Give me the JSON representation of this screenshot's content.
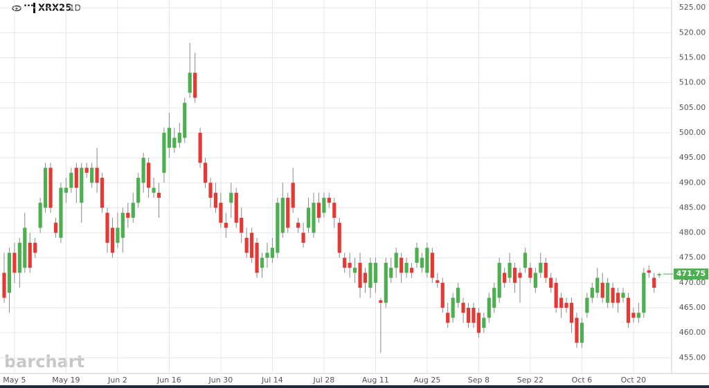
{
  "header": {
    "symbol": "XRX25",
    "interval": "1D",
    "menu": "···"
  },
  "watermark": "barchart",
  "chart_data": {
    "type": "candlestick",
    "last_price": 471.75,
    "up_color": "#4caf50",
    "down_color": "#e53935",
    "grid": true,
    "categories": [
      null,
      null,
      "May 5",
      null,
      null,
      null,
      null,
      null,
      null,
      null,
      null,
      null,
      "May 19",
      null,
      null,
      null,
      null,
      null,
      null,
      null,
      null,
      null,
      "Jun 2",
      null,
      null,
      null,
      null,
      null,
      null,
      null,
      null,
      null,
      "Jun 16",
      null,
      null,
      null,
      null,
      null,
      null,
      null,
      null,
      null,
      "Jun 30",
      null,
      null,
      null,
      null,
      null,
      null,
      null,
      null,
      null,
      "Jul 14",
      null,
      null,
      null,
      null,
      null,
      null,
      null,
      null,
      null,
      "Jul 28",
      null,
      null,
      null,
      null,
      null,
      null,
      null,
      null,
      null,
      "Aug 11",
      null,
      null,
      null,
      null,
      null,
      null,
      null,
      null,
      null,
      "Aug 25",
      null,
      null,
      null,
      null,
      null,
      null,
      null,
      null,
      null,
      "Sep 8",
      null,
      null,
      null,
      null,
      null,
      null,
      null,
      null,
      null,
      "Sep 22",
      null,
      null,
      null,
      null,
      null,
      null,
      null,
      null,
      null,
      "Oct 6",
      null,
      null,
      null,
      null,
      null,
      null,
      null,
      null,
      null,
      "Oct 20",
      null,
      null,
      null,
      null,
      null
    ],
    "open": [
      472,
      468,
      476,
      472,
      473,
      478,
      478,
      481,
      485,
      493,
      482,
      479,
      488,
      489,
      493,
      486,
      493,
      490,
      493,
      491,
      484,
      481,
      478,
      479,
      484,
      483,
      486,
      490,
      494,
      488,
      488,
      492,
      497,
      497,
      498,
      499,
      508,
      512,
      500,
      494,
      490,
      488,
      486,
      482,
      486,
      488,
      483,
      479,
      480,
      478,
      473,
      475,
      475,
      476,
      480,
      487,
      490,
      482,
      480,
      481,
      480,
      486,
      484,
      487,
      486,
      482,
      475,
      474,
      472,
      474,
      472,
      469,
      470,
      466.5,
      466,
      471,
      473,
      475,
      472,
      473,
      474,
      473,
      472,
      476,
      470.5,
      470,
      464,
      463,
      466,
      466,
      465,
      465,
      464,
      461,
      463,
      465,
      467,
      472,
      471,
      473,
      472,
      473,
      473,
      469,
      472,
      474,
      471,
      470,
      467,
      466,
      466,
      463,
      458,
      464,
      467,
      468,
      470,
      466,
      469,
      468,
      467,
      467,
      464,
      463,
      464,
      472.5,
      471,
      471.5
    ],
    "high": [
      476,
      477,
      478,
      479,
      484,
      480,
      479,
      487,
      494,
      494,
      483,
      490,
      491,
      493,
      494,
      494,
      494,
      494,
      497,
      492,
      485,
      483,
      484,
      485,
      486,
      488,
      492,
      496,
      495,
      491,
      490,
      501,
      504,
      501,
      502,
      507,
      518,
      516,
      501,
      495,
      491,
      490,
      488,
      484,
      490,
      489,
      485,
      481,
      481,
      479,
      476,
      478,
      479,
      487,
      490,
      488,
      493,
      483,
      482,
      487,
      488,
      488,
      488,
      488,
      487,
      483,
      476,
      476,
      475,
      476,
      473,
      475,
      475,
      467,
      475,
      475,
      477,
      476,
      475,
      474,
      478,
      476,
      478,
      477,
      472,
      471,
      466,
      468,
      470,
      467,
      466,
      466,
      465,
      464,
      468,
      470,
      475,
      473,
      476,
      474,
      473,
      477,
      474,
      473,
      476,
      475,
      472,
      471,
      468,
      467,
      467,
      464,
      463,
      468,
      470,
      473,
      472,
      471,
      470,
      469,
      469,
      468,
      465,
      466,
      473,
      473.5,
      472,
      472
    ],
    "low": [
      466,
      464,
      470,
      469,
      472,
      472,
      475,
      480,
      484,
      484,
      479,
      478,
      486,
      488,
      486,
      482,
      491,
      489,
      488,
      484,
      476,
      475,
      477,
      476,
      481,
      482,
      485,
      488,
      487,
      487,
      483,
      490,
      495,
      496,
      497,
      498,
      507,
      506,
      493,
      489,
      485,
      484,
      481,
      479,
      483,
      481,
      478,
      475,
      474,
      471,
      471,
      473,
      474,
      475,
      479,
      480,
      484,
      480,
      477,
      480,
      479,
      482,
      483,
      485,
      481,
      475,
      472,
      471,
      470,
      467,
      468,
      467,
      468,
      456,
      465,
      470,
      471,
      470,
      471,
      471,
      473,
      472,
      471,
      470,
      469,
      464,
      461,
      462,
      465,
      462,
      461,
      461,
      459,
      460,
      462,
      464,
      466,
      469,
      470,
      468,
      466,
      472,
      470,
      468,
      471,
      470,
      468,
      464,
      463,
      464,
      460,
      457,
      457,
      463,
      466,
      467,
      466,
      465,
      465,
      464,
      466,
      461,
      462,
      462,
      463,
      471,
      468,
      471
    ],
    "close": [
      467,
      476,
      472,
      478,
      481,
      473,
      476,
      486,
      493,
      485,
      480,
      489,
      489,
      492,
      489,
      493,
      492,
      493,
      490,
      485,
      478,
      476,
      481,
      484,
      483,
      486,
      491,
      495,
      489,
      489,
      487,
      500,
      501,
      499,
      500,
      506,
      512,
      507,
      494,
      490,
      487,
      485,
      482,
      481,
      488,
      482,
      480,
      476,
      475,
      472,
      475,
      476,
      477,
      486,
      487,
      481,
      485,
      481,
      478,
      485,
      486,
      483,
      487,
      486,
      483,
      476,
      473,
      473,
      473,
      469,
      470,
      474,
      474,
      466,
      474,
      473,
      476,
      472,
      474,
      472,
      477,
      475,
      477,
      471,
      470,
      465,
      462,
      467,
      469,
      464,
      462,
      462,
      460,
      463,
      467,
      469,
      474,
      470,
      474,
      470,
      471,
      476,
      471,
      472,
      474,
      471,
      469,
      465,
      465,
      465,
      462,
      458,
      462,
      467,
      469,
      471,
      467,
      470,
      466,
      466,
      468,
      462,
      463,
      464,
      472,
      472,
      469,
      471.75
    ],
    "ylim": [
      454,
      525.5
    ],
    "yticks": [
      {
        "value": 455,
        "label": "455.00"
      },
      {
        "value": 460,
        "label": "460.00"
      },
      {
        "value": 465,
        "label": "465.00"
      },
      {
        "value": 470,
        "label": "470.00"
      },
      {
        "value": 475,
        "label": "475.00"
      },
      {
        "value": 480,
        "label": "480.00"
      },
      {
        "value": 485,
        "label": "485.00"
      },
      {
        "value": 490,
        "label": "490.00"
      },
      {
        "value": 495,
        "label": "495.00"
      },
      {
        "value": 500,
        "label": "500.00"
      },
      {
        "value": 505,
        "label": "505.00"
      },
      {
        "value": 510,
        "label": "510.00"
      },
      {
        "value": 515,
        "label": "515.00"
      },
      {
        "value": 520,
        "label": "520.00"
      },
      {
        "value": 525,
        "label": "525.00"
      }
    ]
  }
}
